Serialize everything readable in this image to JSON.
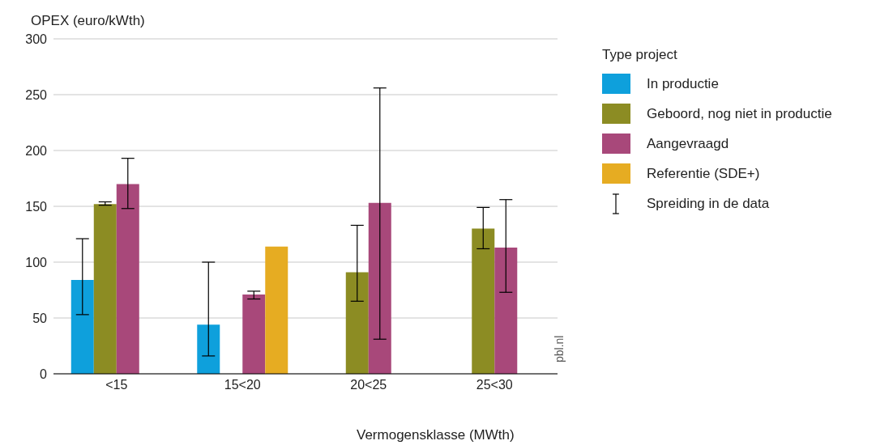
{
  "chart_data": {
    "type": "bar",
    "ylabel": "OPEX (euro/kWth)",
    "xlabel": "Vermogensklasse (MWth)",
    "legend_title": "Type project",
    "legend": "top right",
    "grid": "y",
    "categories": [
      "<15",
      "15<20",
      "20<25",
      "25<30"
    ],
    "ylim": [
      0,
      300
    ],
    "yticks": [
      0,
      50,
      100,
      150,
      200,
      250,
      300
    ],
    "series": [
      {
        "name": "In productie",
        "color": "#0ea0dc",
        "values": [
          84,
          44,
          null,
          null
        ],
        "errors": [
          [
            53,
            121
          ],
          [
            16,
            100
          ],
          null,
          null
        ]
      },
      {
        "name": "Geboord, nog niet in productie",
        "color": "#8c8c23",
        "values": [
          152,
          null,
          91,
          130
        ],
        "errors": [
          [
            151,
            154
          ],
          null,
          [
            65,
            133
          ],
          [
            112,
            149
          ]
        ]
      },
      {
        "name": "Aangevraagd",
        "color": "#a8487a",
        "values": [
          170,
          71,
          153,
          113
        ],
        "errors": [
          [
            148,
            193
          ],
          [
            67,
            74
          ],
          [
            31,
            256
          ],
          [
            73,
            156
          ]
        ]
      },
      {
        "name": "Referentie (SDE+)",
        "color": "#e6ac22",
        "values": [
          null,
          114,
          null,
          null
        ]
      }
    ],
    "annotations": [
      "Spreiding in de data",
      "pbl.nl"
    ]
  }
}
